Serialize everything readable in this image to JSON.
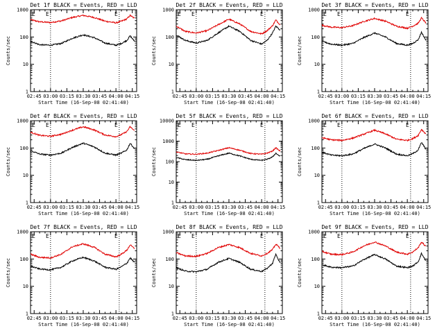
{
  "figure": {
    "ylabel": "Counts/sec",
    "xlabel": "Start Time (16-Sep-08 02:41:40)",
    "x_ticks": [
      "02:45",
      "03:00",
      "03:15",
      "03:30",
      "03:45",
      "04:00",
      "04:15"
    ],
    "y_ticks": [
      "1",
      "10",
      "100",
      "1000"
    ],
    "marker": "E",
    "colors": {
      "events": "#000000",
      "lld": "#e00000"
    }
  },
  "chart_data": [
    {
      "type": "line",
      "title": "Det 1f BLACK = Events, RED = LLD",
      "x": [
        "02:41:40",
        "02:50",
        "03:00",
        "03:10",
        "03:20",
        "03:30",
        "03:40",
        "03:50",
        "04:00",
        "04:05",
        "04:10",
        "04:13",
        "04:17"
      ],
      "xlim": [
        "02:41:40",
        "04:19"
      ],
      "ylim": [
        1,
        1000
      ],
      "yscale": "log",
      "dotted_lines": [
        "03:00",
        "04:03"
      ],
      "series": [
        {
          "name": "LLD",
          "color": "#e00000",
          "values": [
            430,
            360,
            340,
            390,
            520,
            620,
            520,
            380,
            330,
            380,
            460,
            620,
            480
          ]
        },
        {
          "name": "Events",
          "color": "#000000",
          "values": [
            70,
            52,
            50,
            58,
            90,
            120,
            95,
            60,
            50,
            58,
            75,
            110,
            70
          ]
        }
      ]
    },
    {
      "type": "line",
      "title": "Det 2f BLACK = Events, RED = LLD",
      "x": [
        "02:41:40",
        "02:50",
        "03:00",
        "03:10",
        "03:20",
        "03:30",
        "03:40",
        "03:50",
        "04:00",
        "04:05",
        "04:10",
        "04:13",
        "04:17"
      ],
      "xlim": [
        "02:41:40",
        "04:19"
      ],
      "ylim": [
        1,
        1000
      ],
      "yscale": "log",
      "dotted_lines": [
        "03:00",
        "04:03"
      ],
      "series": [
        {
          "name": "LLD",
          "color": "#e00000",
          "values": [
            250,
            160,
            140,
            170,
            280,
            450,
            300,
            160,
            130,
            170,
            260,
            420,
            280
          ]
        },
        {
          "name": "Events",
          "color": "#000000",
          "values": [
            120,
            75,
            60,
            75,
            140,
            250,
            160,
            75,
            55,
            75,
            140,
            250,
            180
          ]
        }
      ]
    },
    {
      "type": "line",
      "title": "Det 3f BLACK = Events, RED = LLD",
      "x": [
        "02:41:40",
        "02:50",
        "03:00",
        "03:10",
        "03:20",
        "03:30",
        "03:40",
        "03:50",
        "04:00",
        "04:05",
        "04:10",
        "04:13",
        "04:17"
      ],
      "xlim": [
        "02:41:40",
        "04:19"
      ],
      "ylim": [
        1,
        1000
      ],
      "yscale": "log",
      "dotted_lines": [
        "03:00",
        "04:03"
      ],
      "series": [
        {
          "name": "LLD",
          "color": "#e00000",
          "values": [
            270,
            230,
            220,
            260,
            370,
            480,
            380,
            250,
            210,
            250,
            320,
            500,
            330
          ]
        },
        {
          "name": "Events",
          "color": "#000000",
          "values": [
            70,
            55,
            50,
            58,
            95,
            140,
            100,
            58,
            50,
            58,
            80,
            150,
            75
          ]
        }
      ]
    },
    {
      "type": "line",
      "title": "Det 4f BLACK = Events, RED = LLD",
      "x": [
        "02:41:40",
        "02:50",
        "03:00",
        "03:10",
        "03:20",
        "03:30",
        "03:40",
        "03:50",
        "04:00",
        "04:05",
        "04:10",
        "04:13",
        "04:17"
      ],
      "xlim": [
        "02:41:40",
        "04:19"
      ],
      "ylim": [
        1,
        1000
      ],
      "yscale": "log",
      "dotted_lines": [
        "03:00",
        "04:03"
      ],
      "series": [
        {
          "name": "LLD",
          "color": "#e00000",
          "values": [
            380,
            290,
            270,
            320,
            450,
            600,
            460,
            300,
            260,
            310,
            400,
            600,
            430
          ]
        },
        {
          "name": "Events",
          "color": "#000000",
          "values": [
            80,
            60,
            55,
            65,
            105,
            150,
            110,
            65,
            55,
            65,
            85,
            150,
            95
          ]
        }
      ]
    },
    {
      "type": "line",
      "title": "Det 5f BLACK = Events, RED = LLD",
      "x": [
        "02:41:40",
        "02:50",
        "03:00",
        "03:10",
        "03:20",
        "03:30",
        "03:40",
        "03:50",
        "04:00",
        "04:05",
        "04:10",
        "04:13",
        "04:17"
      ],
      "xlim": [
        "02:41:40",
        "04:19"
      ],
      "ylim": [
        1,
        10000
      ],
      "yscale": "log",
      "dotted_lines": [
        "03:00",
        "04:03"
      ],
      "series": [
        {
          "name": "LLD",
          "color": "#e00000",
          "values": [
            300,
            240,
            230,
            260,
            350,
            480,
            360,
            250,
            230,
            260,
            330,
            480,
            320
          ]
        },
        {
          "name": "Events",
          "color": "#000000",
          "values": [
            160,
            125,
            115,
            130,
            190,
            260,
            190,
            130,
            115,
            130,
            170,
            260,
            180
          ]
        }
      ]
    },
    {
      "type": "line",
      "title": "Det 6f BLACK = Events, RED = LLD",
      "x": [
        "02:41:40",
        "02:50",
        "03:00",
        "03:10",
        "03:20",
        "03:30",
        "03:40",
        "03:50",
        "04:00",
        "04:05",
        "04:10",
        "04:13",
        "04:17"
      ],
      "xlim": [
        "02:41:40",
        "04:19"
      ],
      "ylim": [
        1,
        1000
      ],
      "yscale": "log",
      "dotted_lines": [
        "03:00",
        "04:03"
      ],
      "series": [
        {
          "name": "LLD",
          "color": "#e00000",
          "values": [
            240,
            200,
            190,
            230,
            320,
            450,
            330,
            210,
            190,
            220,
            290,
            480,
            330
          ]
        },
        {
          "name": "Events",
          "color": "#000000",
          "values": [
            70,
            55,
            52,
            60,
            95,
            140,
            100,
            60,
            52,
            62,
            85,
            160,
            90
          ]
        }
      ]
    },
    {
      "type": "line",
      "title": "Det 7f BLACK = Events, RED = LLD",
      "x": [
        "02:41:40",
        "02:50",
        "03:00",
        "03:10",
        "03:20",
        "03:30",
        "03:40",
        "03:50",
        "04:00",
        "04:05",
        "04:10",
        "04:13",
        "04:17"
      ],
      "xlim": [
        "02:41:40",
        "04:19"
      ],
      "ylim": [
        1,
        1000
      ],
      "yscale": "log",
      "dotted_lines": [
        "03:00",
        "04:03"
      ],
      "series": [
        {
          "name": "LLD",
          "color": "#e00000",
          "values": [
            150,
            115,
            110,
            150,
            280,
            360,
            270,
            150,
            120,
            150,
            210,
            330,
            240
          ]
        },
        {
          "name": "Events",
          "color": "#000000",
          "values": [
            55,
            43,
            40,
            50,
            85,
            115,
            85,
            50,
            42,
            52,
            70,
            110,
            75
          ]
        }
      ]
    },
    {
      "type": "line",
      "title": "Det 8f BLACK = Events, RED = LLD",
      "x": [
        "02:41:40",
        "02:50",
        "03:00",
        "03:10",
        "03:20",
        "03:30",
        "03:40",
        "03:50",
        "04:00",
        "04:05",
        "04:10",
        "04:13",
        "04:17"
      ],
      "xlim": [
        "02:41:40",
        "04:19"
      ],
      "ylim": [
        1,
        1000
      ],
      "yscale": "log",
      "dotted_lines": [
        "03:00",
        "04:03"
      ],
      "series": [
        {
          "name": "LLD",
          "color": "#e00000",
          "values": [
            170,
            130,
            125,
            160,
            260,
            340,
            260,
            160,
            130,
            160,
            220,
            350,
            250
          ]
        },
        {
          "name": "Events",
          "color": "#000000",
          "values": [
            48,
            36,
            34,
            42,
            75,
            105,
            75,
            42,
            35,
            45,
            70,
            150,
            70
          ]
        }
      ]
    },
    {
      "type": "line",
      "title": "Det 9f BLACK = Events, RED = LLD",
      "x": [
        "02:41:40",
        "02:50",
        "03:00",
        "03:10",
        "03:20",
        "03:30",
        "03:40",
        "03:50",
        "04:00",
        "04:05",
        "04:10",
        "04:13",
        "04:17"
      ],
      "xlim": [
        "02:41:40",
        "04:19"
      ],
      "ylim": [
        1,
        1000
      ],
      "yscale": "log",
      "dotted_lines": [
        "03:00",
        "04:03"
      ],
      "series": [
        {
          "name": "LLD",
          "color": "#e00000",
          "values": [
            190,
            150,
            145,
            180,
            300,
            420,
            300,
            180,
            150,
            180,
            260,
            420,
            290
          ]
        },
        {
          "name": "Events",
          "color": "#000000",
          "values": [
            62,
            50,
            48,
            55,
            95,
            145,
            100,
            55,
            48,
            55,
            80,
            160,
            85
          ]
        }
      ]
    }
  ]
}
